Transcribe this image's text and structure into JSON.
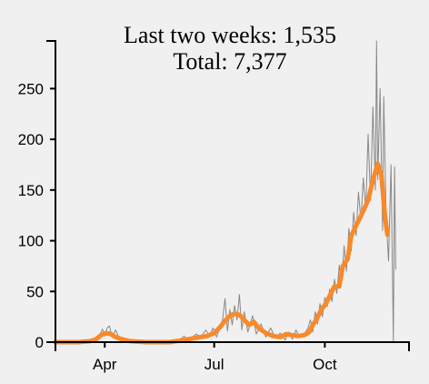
{
  "chart_data": {
    "type": "line",
    "title_lines": [
      "Last two weeks: 1,535",
      "Total: 7,377"
    ],
    "x_axis": {
      "scale": "time",
      "range": [
        "2020-02-20",
        "2020-12-10"
      ],
      "ticks": [
        {
          "date": "2020-04-01",
          "label": "Apr"
        },
        {
          "date": "2020-07-01",
          "label": "Jul"
        },
        {
          "date": "2020-10-01",
          "label": "Oct"
        }
      ]
    },
    "y_axis": {
      "ylim": [
        0,
        297
      ],
      "ticks": [
        0,
        50,
        100,
        150,
        200,
        250
      ]
    },
    "grid": false,
    "legend": "none",
    "series": [
      {
        "role": "daily",
        "color": "#888888",
        "points": [
          [
            "2020-02-20",
            0
          ],
          [
            "2020-03-01",
            0
          ],
          [
            "2020-03-10",
            0
          ],
          [
            "2020-03-20",
            1
          ],
          [
            "2020-03-25",
            4
          ],
          [
            "2020-03-28",
            7
          ],
          [
            "2020-03-30",
            13
          ],
          [
            "2020-04-01",
            6
          ],
          [
            "2020-04-03",
            14
          ],
          [
            "2020-04-05",
            16
          ],
          [
            "2020-04-07",
            5
          ],
          [
            "2020-04-10",
            12
          ],
          [
            "2020-04-13",
            4
          ],
          [
            "2020-04-17",
            3
          ],
          [
            "2020-04-22",
            1
          ],
          [
            "2020-05-01",
            0
          ],
          [
            "2020-05-10",
            0
          ],
          [
            "2020-05-20",
            1
          ],
          [
            "2020-05-28",
            0
          ],
          [
            "2020-06-03",
            3
          ],
          [
            "2020-06-06",
            6
          ],
          [
            "2020-06-09",
            2
          ],
          [
            "2020-06-12",
            4
          ],
          [
            "2020-06-16",
            8
          ],
          [
            "2020-06-20",
            5
          ],
          [
            "2020-06-24",
            12
          ],
          [
            "2020-06-27",
            6
          ],
          [
            "2020-06-30",
            14
          ],
          [
            "2020-07-03",
            5
          ],
          [
            "2020-07-06",
            16
          ],
          [
            "2020-07-08",
            22
          ],
          [
            "2020-07-10",
            43
          ],
          [
            "2020-07-12",
            11
          ],
          [
            "2020-07-14",
            32
          ],
          [
            "2020-07-16",
            17
          ],
          [
            "2020-07-18",
            36
          ],
          [
            "2020-07-20",
            22
          ],
          [
            "2020-07-22",
            47
          ],
          [
            "2020-07-24",
            12
          ],
          [
            "2020-07-26",
            30
          ],
          [
            "2020-07-29",
            10
          ],
          [
            "2020-08-02",
            26
          ],
          [
            "2020-08-05",
            8
          ],
          [
            "2020-08-09",
            18
          ],
          [
            "2020-08-13",
            5
          ],
          [
            "2020-08-17",
            14
          ],
          [
            "2020-08-21",
            4
          ],
          [
            "2020-08-25",
            9
          ],
          [
            "2020-08-29",
            2
          ],
          [
            "2020-09-01",
            10
          ],
          [
            "2020-09-04",
            3
          ],
          [
            "2020-09-07",
            12
          ],
          [
            "2020-09-10",
            5
          ],
          [
            "2020-09-14",
            8
          ],
          [
            "2020-09-17",
            14
          ],
          [
            "2020-09-19",
            22
          ],
          [
            "2020-09-21",
            10
          ],
          [
            "2020-09-23",
            30
          ],
          [
            "2020-09-25",
            18
          ],
          [
            "2020-09-27",
            38
          ],
          [
            "2020-09-29",
            25
          ],
          [
            "2020-10-01",
            44
          ],
          [
            "2020-10-03",
            35
          ],
          [
            "2020-10-05",
            52
          ],
          [
            "2020-10-07",
            40
          ],
          [
            "2020-10-09",
            62
          ],
          [
            "2020-10-11",
            48
          ],
          [
            "2020-10-13",
            76
          ],
          [
            "2020-10-15",
            58
          ],
          [
            "2020-10-17",
            95
          ],
          [
            "2020-10-19",
            70
          ],
          [
            "2020-10-21",
            112
          ],
          [
            "2020-10-23",
            90
          ],
          [
            "2020-10-25",
            128
          ],
          [
            "2020-10-27",
            105
          ],
          [
            "2020-10-29",
            148
          ],
          [
            "2020-10-31",
            120
          ],
          [
            "2020-11-02",
            162
          ],
          [
            "2020-11-04",
            130
          ],
          [
            "2020-11-06",
            205
          ],
          [
            "2020-11-08",
            140
          ],
          [
            "2020-11-10",
            232
          ],
          [
            "2020-11-12",
            150
          ],
          [
            "2020-11-13",
            297
          ],
          [
            "2020-11-14",
            160
          ],
          [
            "2020-11-16",
            250
          ],
          [
            "2020-11-18",
            110
          ],
          [
            "2020-11-19",
            242
          ],
          [
            "2020-11-21",
            120
          ],
          [
            "2020-11-23",
            80
          ],
          [
            "2020-11-25",
            175
          ],
          [
            "2020-11-27",
            1
          ],
          [
            "2020-11-28",
            173
          ],
          [
            "2020-11-29",
            72
          ]
        ]
      },
      {
        "role": "average",
        "color": "#f98929",
        "points": [
          [
            "2020-02-20",
            0
          ],
          [
            "2020-03-10",
            0
          ],
          [
            "2020-03-20",
            1
          ],
          [
            "2020-03-25",
            3
          ],
          [
            "2020-03-29",
            7
          ],
          [
            "2020-04-02",
            9
          ],
          [
            "2020-04-06",
            8
          ],
          [
            "2020-04-10",
            5
          ],
          [
            "2020-04-15",
            3
          ],
          [
            "2020-04-22",
            1
          ],
          [
            "2020-05-05",
            0
          ],
          [
            "2020-05-25",
            0
          ],
          [
            "2020-06-05",
            2
          ],
          [
            "2020-06-15",
            4
          ],
          [
            "2020-06-25",
            6
          ],
          [
            "2020-07-01",
            9
          ],
          [
            "2020-07-06",
            15
          ],
          [
            "2020-07-10",
            21
          ],
          [
            "2020-07-14",
            26
          ],
          [
            "2020-07-18",
            28
          ],
          [
            "2020-07-22",
            27
          ],
          [
            "2020-07-26",
            22
          ],
          [
            "2020-07-30",
            17
          ],
          [
            "2020-08-03",
            20
          ],
          [
            "2020-08-07",
            14
          ],
          [
            "2020-08-13",
            9
          ],
          [
            "2020-08-19",
            6
          ],
          [
            "2020-08-25",
            5
          ],
          [
            "2020-08-30",
            8
          ],
          [
            "2020-09-03",
            7
          ],
          [
            "2020-09-09",
            6
          ],
          [
            "2020-09-14",
            7
          ],
          [
            "2020-09-18",
            10
          ],
          [
            "2020-09-21",
            17
          ],
          [
            "2020-09-24",
            22
          ],
          [
            "2020-09-28",
            32
          ],
          [
            "2020-10-02",
            38
          ],
          [
            "2020-10-06",
            48
          ],
          [
            "2020-10-09",
            55
          ],
          [
            "2020-10-13",
            55
          ],
          [
            "2020-10-16",
            75
          ],
          [
            "2020-10-20",
            82
          ],
          [
            "2020-10-23",
            105
          ],
          [
            "2020-10-27",
            115
          ],
          [
            "2020-10-30",
            122
          ],
          [
            "2020-11-03",
            132
          ],
          [
            "2020-11-06",
            140
          ],
          [
            "2020-11-09",
            155
          ],
          [
            "2020-11-12",
            168
          ],
          [
            "2020-11-14",
            176
          ],
          [
            "2020-11-17",
            165
          ],
          [
            "2020-11-20",
            125
          ],
          [
            "2020-11-22",
            106
          ]
        ]
      }
    ]
  }
}
